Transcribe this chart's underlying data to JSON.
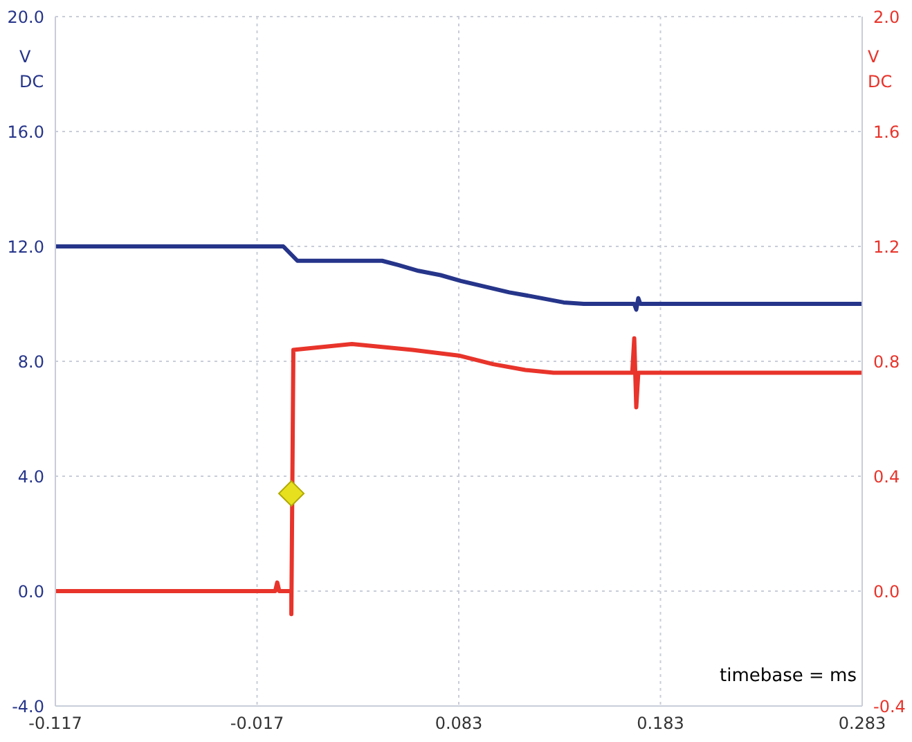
{
  "chart_data": {
    "type": "line",
    "ylabel": "V DC",
    "y2label": "V DC",
    "annotations": [
      "timebase = ms"
    ],
    "xlim": [
      -0.117,
      0.283
    ],
    "xticks": [
      -0.117,
      -0.017,
      0.083,
      0.183,
      0.283
    ],
    "ylim": [
      -4,
      20
    ],
    "yticks": [
      {
        "value": -4,
        "label": "-4.0"
      },
      {
        "value": 0,
        "label": "0.0"
      },
      {
        "value": 4,
        "label": "4.0"
      },
      {
        "value": 8,
        "label": "8.0"
      },
      {
        "value": 12,
        "label": "12.0"
      },
      {
        "value": 16,
        "label": "16.0"
      },
      {
        "value": 20,
        "label": "20.0"
      }
    ],
    "y2lim": [
      -0.4,
      2.0
    ],
    "y2ticks": [
      {
        "value": -0.4,
        "label": "-0.4"
      },
      {
        "value": 0,
        "label": "0.0"
      },
      {
        "value": 0.4,
        "label": "0.4"
      },
      {
        "value": 0.8,
        "label": "0.8"
      },
      {
        "value": 1.2,
        "label": "1.2"
      },
      {
        "value": 1.6,
        "label": "1.6"
      },
      {
        "value": 2,
        "label": "2.0"
      }
    ],
    "grid": true,
    "legend": false,
    "marker": "none",
    "line_style": "solid",
    "series": [
      {
        "color": "#26358a",
        "x": [
          -0.117,
          -0.004,
          0.003,
          0.045,
          0.053,
          0.063,
          0.074,
          0.084,
          0.096,
          0.108,
          0.12,
          0.135,
          0.145,
          0.17,
          0.171,
          0.172,
          0.173,
          0.283
        ],
        "values": [
          12.0,
          12.0,
          11.5,
          11.5,
          11.35,
          11.15,
          11.0,
          10.8,
          10.6,
          10.4,
          10.25,
          10.05,
          10.0,
          10.0,
          9.8,
          10.2,
          10.0,
          10.0
        ]
      },
      {
        "color": "#e8342b",
        "axis": "y2",
        "x": [
          -0.117,
          -0.008,
          -0.007,
          -0.006,
          0.0,
          0.0,
          0.001,
          0.03,
          0.06,
          0.083,
          0.1,
          0.116,
          0.13,
          0.169,
          0.17,
          0.171,
          0.172,
          0.283
        ],
        "values": [
          0.0,
          0.0,
          0.03,
          0.0,
          0.0,
          -0.08,
          0.84,
          0.86,
          0.84,
          0.82,
          0.79,
          0.77,
          0.76,
          0.76,
          0.88,
          0.64,
          0.76,
          0.76
        ]
      },
      {
        "type": "scatter",
        "color": "#e6e01e",
        "axis": "y2",
        "marker": "diamond",
        "x": [
          0.0
        ],
        "values": [
          0.34
        ]
      }
    ]
  }
}
